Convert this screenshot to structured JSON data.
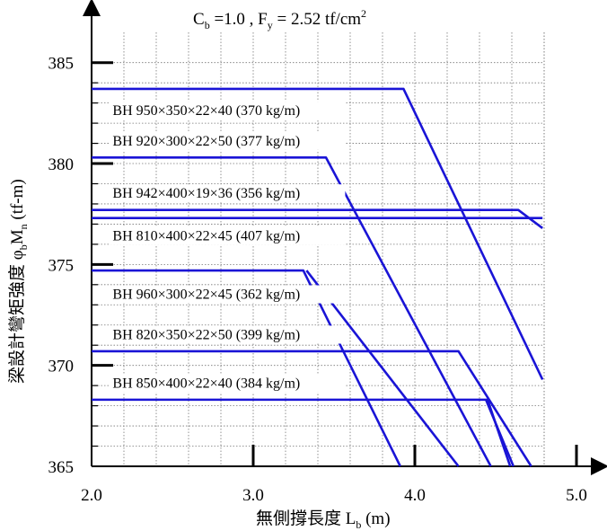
{
  "chart_data": {
    "type": "line",
    "title_parts": {
      "c": "C",
      "c_sub": "b",
      "c_val": " =1.0 , F",
      "f_sub": "y",
      "f_val": " = 2.52 tf/cm",
      "f_sup": "2"
    },
    "xlabel_parts": {
      "main": "無側撐長度 L",
      "sub": "b",
      "unit": " (m)"
    },
    "ylabel_parts": {
      "main": "梁設計彎矩強度 φ",
      "sub1": "b",
      "m": "M",
      "sub2": "n",
      "unit": " (tf-m)"
    },
    "xlim": [
      2.0,
      5.0
    ],
    "ylim": [
      365,
      386.5
    ],
    "xticks": [
      "2.0",
      "3.0",
      "4.0",
      "5.0"
    ],
    "yticks": [
      "365",
      "370",
      "375",
      "380",
      "385"
    ],
    "grid": "dotted",
    "line_color": "#1a14d6",
    "series": [
      {
        "name": "BH 950×350×22×40 (370 kg/m)",
        "points": [
          [
            2.0,
            383.7
          ],
          [
            3.93,
            383.7
          ],
          [
            4.79,
            369.3
          ]
        ]
      },
      {
        "name": "BH 920×300×22×50 (377 kg/m)",
        "points": [
          [
            2.0,
            380.3
          ],
          [
            3.45,
            380.3
          ],
          [
            4.47,
            365.0
          ]
        ]
      },
      {
        "name": "BH 942×400×19×36 (356 kg/m)",
        "points": [
          [
            2.0,
            377.7
          ],
          [
            4.64,
            377.7
          ],
          [
            4.79,
            376.8
          ]
        ]
      },
      {
        "name": "BH 810×400×22×45 (407 kg/m)",
        "points": [
          [
            2.0,
            377.3
          ],
          [
            4.79,
            377.3
          ]
        ]
      },
      {
        "name": "BH 960×300×22×45 (362 kg/m)",
        "points": [
          [
            2.0,
            374.7
          ],
          [
            3.31,
            374.7
          ],
          [
            3.91,
            365.0
          ]
        ]
      },
      {
        "name": "BH 820×350×22×50 (399 kg/m)",
        "points": [
          [
            2.0,
            370.7
          ],
          [
            4.27,
            370.7
          ],
          [
            4.72,
            365.0
          ]
        ]
      },
      {
        "name": "BH 850×400×22×40 (384 kg/m)",
        "points": [
          [
            2.0,
            368.3
          ],
          [
            4.45,
            368.3
          ],
          [
            4.59,
            365.0
          ]
        ]
      }
    ],
    "crossing_lines": [
      {
        "points": [
          [
            3.33,
            374.7
          ],
          [
            4.27,
            365.0
          ]
        ]
      },
      {
        "points": [
          [
            4.44,
            368.3
          ],
          [
            4.61,
            365.0
          ]
        ]
      }
    ],
    "labels": [
      {
        "text": "BH 950×350×22×40 (370 kg/m)",
        "x": 2.13,
        "y": 382.4
      },
      {
        "text": "BH 920×300×22×50 (377 kg/m)",
        "x": 2.13,
        "y": 380.9
      },
      {
        "text": "BH 942×400×19×36 (356 kg/m)",
        "x": 2.13,
        "y": 378.3
      },
      {
        "text": "BH 810×400×22×45 (407 kg/m)",
        "x": 2.13,
        "y": 376.2
      },
      {
        "text": "BH 960×300×22×45 (362 kg/m)",
        "x": 2.13,
        "y": 373.3
      },
      {
        "text": "BH 820×350×22×50 (399 kg/m)",
        "x": 2.13,
        "y": 371.3
      },
      {
        "text": "BH 850×400×22×40 (384 kg/m)",
        "x": 2.13,
        "y": 368.9
      }
    ]
  }
}
